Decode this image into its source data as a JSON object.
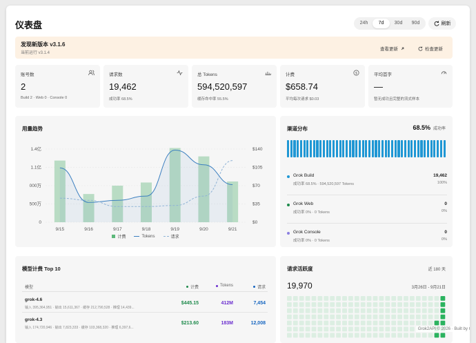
{
  "header": {
    "title": "仪表盘",
    "ranges": [
      "24h",
      "7d",
      "30d",
      "90d"
    ],
    "active_range": "7d",
    "refresh_label": "刷新"
  },
  "notice": {
    "title": "发现新版本 v3.1.6",
    "subtitle": "当前运行 v3.1.4",
    "update_label": "查看更新",
    "check_label": "检查更新"
  },
  "stats": [
    {
      "label": "账号数",
      "value": "2",
      "sub": "Build 2 · Web 0 · Console 0",
      "icon": "users-icon"
    },
    {
      "label": "请求数",
      "value": "19,462",
      "sub": "成功率 68.5%",
      "icon": "activity-icon"
    },
    {
      "label": "总 Tokens",
      "value": "594,520,597",
      "sub": "缓存命中率 55.5%",
      "icon": "layers-icon"
    },
    {
      "label": "计费",
      "value": "$658.74",
      "sub": "平均每次请求 $0.03",
      "icon": "dollar-icon"
    },
    {
      "label": "平均首字",
      "value": "—",
      "sub": "暂无成功且完整的流式样本",
      "icon": "gauge-icon"
    }
  ],
  "usage": {
    "title": "用量趋势",
    "legend": [
      "计费",
      "Tokens",
      "请求"
    ]
  },
  "chart_data": {
    "type": "bar",
    "categories": [
      "9/15",
      "9/16",
      "9/17",
      "9/18",
      "9/19",
      "9/20",
      "9/21"
    ],
    "left_axis_ticks": [
      "1.4亿",
      "1.1亿",
      "000万",
      "500万",
      "0"
    ],
    "right_axis_ticks": [
      "$140",
      "$105",
      "$70",
      "$35",
      "$0"
    ],
    "ylim_right": [
      0,
      140
    ],
    "series": [
      {
        "name": "计费",
        "kind": "bar",
        "axis": "right",
        "values": [
          118,
          54,
          70,
          76,
          142,
          126,
          78
        ]
      },
      {
        "name": "Tokens",
        "kind": "line",
        "axis": "right",
        "values": [
          104,
          38,
          42,
          50,
          138,
          110,
          72
        ]
      },
      {
        "name": "请求",
        "kind": "dashed",
        "axis": "right",
        "values": [
          46,
          42,
          30,
          30,
          32,
          50,
          118
        ]
      }
    ],
    "colors": {
      "bar": "#b9dcc4",
      "line": "#3b7fc0",
      "dashed": "#8fb3d6"
    }
  },
  "channels": {
    "title": "渠道分布",
    "summary": "68.5%",
    "summary_label": "成功率",
    "bar_segments": 49,
    "bar_color": "#1f97d4",
    "items": [
      {
        "name": "Grok Build",
        "meta": "成功率 68.5% · 594,520,597 Tokens",
        "value": "19,462",
        "pct": "100%",
        "color": "#1f97d4"
      },
      {
        "name": "Grok Web",
        "meta": "成功率 0% · 0 Tokens",
        "value": "0",
        "pct": "0%",
        "color": "#1f8a4c"
      },
      {
        "name": "Grok Console",
        "meta": "成功率 0% · 0 Tokens",
        "value": "0",
        "pct": "0%",
        "color": "#8b7fe0"
      }
    ]
  },
  "models": {
    "title": "模型计费 Top 10",
    "columns": [
      "模型",
      "计费",
      "Tokens",
      "请求"
    ],
    "rows": [
      {
        "model": "grok-4.6",
        "meta": "输入 395,364,951 · 输出 15,611,367 · 缓存 212,790,528 · 推理 14,439...",
        "cost": "$445.15",
        "tokens": "412M",
        "requests": "7,454"
      },
      {
        "model": "grok-4.3",
        "meta": "输入 174,720,946 · 输出 7,823,333 · 缓存 103,368,320 · 推理 6,397,6...",
        "cost": "$213.60",
        "tokens": "183M",
        "requests": "12,008"
      }
    ]
  },
  "activity": {
    "title": "请求活跃度",
    "range_label": "近 180 天",
    "total": "19,970",
    "date_range": "3月26日 - 9月21日",
    "empty_color": "#dceee2",
    "active_color": "#2bb35f"
  },
  "footer": {
    "text": "Grok2API © 2026 · Built by C"
  }
}
